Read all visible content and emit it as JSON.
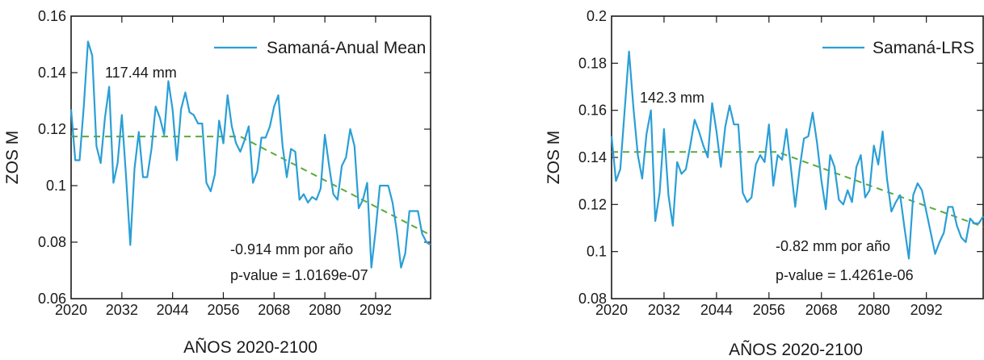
{
  "chart_data": [
    {
      "type": "line",
      "xlabel": "AÑOS 2020-2100",
      "ylabel": "ZOS M",
      "xlim": [
        2020,
        2105
      ],
      "ylim": [
        0.06,
        0.16
      ],
      "xticks": [
        "2020",
        "2032",
        "2044",
        "2056",
        "2068",
        "2080",
        "2092"
      ],
      "yticks": [
        "0.06",
        "0.08",
        "0.1",
        "0.12",
        "0.14",
        "0.16"
      ],
      "grid": false,
      "legend_position": "top-right",
      "series": [
        {
          "name": "Samaná-Anual Mean",
          "color": "#2a9fd6",
          "x": [
            2020,
            2021,
            2022,
            2023,
            2024,
            2025,
            2026,
            2027,
            2028,
            2029,
            2030,
            2031,
            2032,
            2033,
            2034,
            2035,
            2036,
            2037,
            2038,
            2039,
            2040,
            2041,
            2042,
            2043,
            2044,
            2045,
            2046,
            2047,
            2048,
            2049,
            2050,
            2051,
            2052,
            2053,
            2054,
            2055,
            2056,
            2057,
            2058,
            2059,
            2060,
            2061,
            2062,
            2063,
            2064,
            2065,
            2066,
            2067,
            2068,
            2069,
            2070,
            2071,
            2072,
            2073,
            2074,
            2075,
            2076,
            2077,
            2078,
            2079,
            2080,
            2081,
            2082,
            2083,
            2084,
            2085,
            2086,
            2087,
            2088,
            2089,
            2090,
            2091,
            2092,
            2093,
            2094,
            2095,
            2096,
            2097,
            2098,
            2099,
            2100,
            2101,
            2102,
            2103,
            2104,
            2105
          ],
          "values": [
            0.127,
            0.109,
            0.109,
            0.128,
            0.151,
            0.146,
            0.114,
            0.108,
            0.124,
            0.135,
            0.101,
            0.108,
            0.125,
            0.103,
            0.079,
            0.106,
            0.119,
            0.103,
            0.103,
            0.113,
            0.128,
            0.124,
            0.118,
            0.137,
            0.127,
            0.109,
            0.127,
            0.133,
            0.126,
            0.125,
            0.122,
            0.122,
            0.101,
            0.098,
            0.104,
            0.123,
            0.115,
            0.132,
            0.121,
            0.115,
            0.112,
            0.116,
            0.121,
            0.101,
            0.105,
            0.117,
            0.117,
            0.121,
            0.128,
            0.132,
            0.114,
            0.103,
            0.113,
            0.112,
            0.095,
            0.097,
            0.094,
            0.096,
            0.095,
            0.099,
            0.118,
            0.107,
            0.097,
            0.095,
            0.107,
            0.11,
            0.12,
            0.114,
            0.092,
            0.095,
            0.101,
            0.071,
            0.084,
            0.1,
            0.1,
            0.1,
            0.094,
            0.084,
            0.071,
            0.076,
            0.091,
            0.091,
            0.091,
            0.083,
            0.08,
            0.079
          ]
        },
        {
          "name": "",
          "type": "trend-dashed",
          "color": "#5aaa3a",
          "x": [
            2020,
            2060,
            2105
          ],
          "values": [
            0.1174,
            0.1174,
            0.0825
          ]
        }
      ],
      "annotations": {
        "level": "117.44 mm",
        "slope": "-0.914 mm por año",
        "pvalue": "p-value = 1.0169e-07"
      }
    },
    {
      "type": "line",
      "xlabel": "AÑOS 2020-2100",
      "ylabel": "ZOS M",
      "xlim": [
        2020,
        2105
      ],
      "ylim": [
        0.08,
        0.2
      ],
      "xticks": [
        "2020",
        "2032",
        "2044",
        "2056",
        "2068",
        "2080",
        "2092"
      ],
      "yticks": [
        "0.08",
        "0.1",
        "0.12",
        "0.14",
        "0.16",
        "0.18",
        "0.2"
      ],
      "grid": false,
      "legend_position": "top-right",
      "series": [
        {
          "name": "Samaná-LRS",
          "color": "#2a9fd6",
          "x": [
            2020,
            2021,
            2022,
            2023,
            2024,
            2025,
            2026,
            2027,
            2028,
            2029,
            2030,
            2031,
            2032,
            2033,
            2034,
            2035,
            2036,
            2037,
            2038,
            2039,
            2040,
            2041,
            2042,
            2043,
            2044,
            2045,
            2046,
            2047,
            2048,
            2049,
            2050,
            2051,
            2052,
            2053,
            2054,
            2055,
            2056,
            2057,
            2058,
            2059,
            2060,
            2061,
            2062,
            2063,
            2064,
            2065,
            2066,
            2067,
            2068,
            2069,
            2070,
            2071,
            2072,
            2073,
            2074,
            2075,
            2076,
            2077,
            2078,
            2079,
            2080,
            2081,
            2082,
            2083,
            2084,
            2085,
            2086,
            2087,
            2088,
            2089,
            2090,
            2091,
            2092,
            2093,
            2094,
            2095,
            2096,
            2097,
            2098,
            2099,
            2100,
            2101,
            2102,
            2103,
            2104,
            2105
          ],
          "values": [
            0.149,
            0.13,
            0.135,
            0.16,
            0.185,
            0.161,
            0.141,
            0.131,
            0.15,
            0.16,
            0.113,
            0.125,
            0.152,
            0.124,
            0.111,
            0.138,
            0.133,
            0.135,
            0.145,
            0.156,
            0.151,
            0.145,
            0.14,
            0.163,
            0.151,
            0.136,
            0.153,
            0.162,
            0.154,
            0.154,
            0.125,
            0.121,
            0.123,
            0.137,
            0.141,
            0.138,
            0.154,
            0.128,
            0.141,
            0.139,
            0.152,
            0.136,
            0.119,
            0.135,
            0.148,
            0.149,
            0.159,
            0.146,
            0.13,
            0.118,
            0.141,
            0.136,
            0.122,
            0.12,
            0.126,
            0.121,
            0.136,
            0.141,
            0.123,
            0.126,
            0.145,
            0.137,
            0.151,
            0.131,
            0.117,
            0.121,
            0.124,
            0.11,
            0.097,
            0.124,
            0.129,
            0.126,
            0.117,
            0.108,
            0.099,
            0.104,
            0.108,
            0.119,
            0.119,
            0.111,
            0.106,
            0.104,
            0.114,
            0.112,
            0.112,
            0.115
          ]
        },
        {
          "name": "",
          "type": "trend-dashed",
          "color": "#5aaa3a",
          "x": [
            2020,
            2058,
            2105
          ],
          "values": [
            0.1423,
            0.1423,
            0.1105
          ]
        }
      ],
      "annotations": {
        "level": "142.3 mm",
        "slope": "-0.82 mm por año",
        "pvalue": "p-value = 1.4261e-06"
      }
    }
  ]
}
